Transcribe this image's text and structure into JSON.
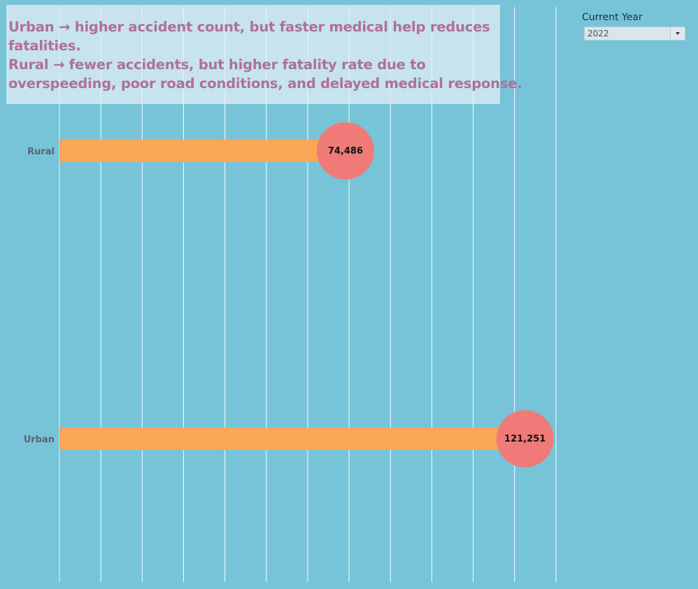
{
  "annotation": {
    "lines": [
      "Urban → higher accident count, but faster medical help reduces",
      "fatalities.",
      "Rural → fewer accidents, but higher fatality rate due to",
      "overspeeding, poor road conditions, and delayed medical response."
    ]
  },
  "filter": {
    "label": "Current Year",
    "value": "2022"
  },
  "colors": {
    "background": "#77c4d9",
    "bar": "#f9a656",
    "circle": "#f07a78",
    "gridline": "#ffffff",
    "category_label": "#5a6470",
    "value_label": "#111111",
    "annotation_text": "#b06e9c"
  },
  "chart_data": {
    "type": "bar",
    "orientation": "horizontal",
    "categories": [
      "Rural",
      "Urban"
    ],
    "values": [
      74486,
      121251
    ],
    "value_labels": [
      "74,486",
      "121,251"
    ],
    "xlim": [
      0,
      130000
    ],
    "grid": true,
    "axis_tick_labels_visible": false
  }
}
